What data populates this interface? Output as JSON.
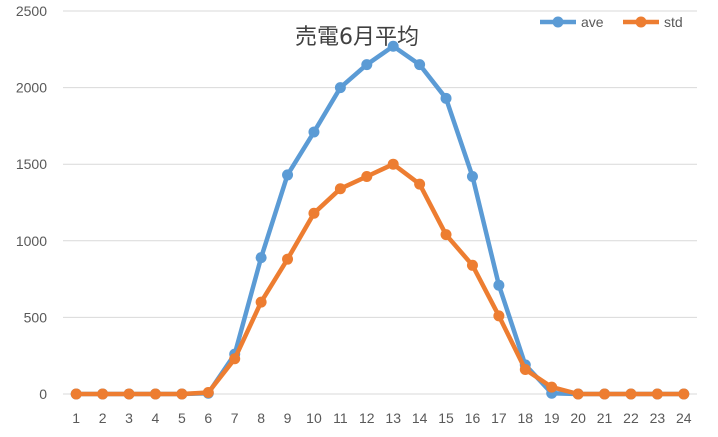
{
  "chart_data": {
    "type": "line",
    "title": "売電6月平均",
    "xlabel": "",
    "ylabel": "",
    "categories": [
      "1",
      "2",
      "3",
      "4",
      "5",
      "6",
      "7",
      "8",
      "9",
      "10",
      "11",
      "12",
      "13",
      "14",
      "15",
      "16",
      "17",
      "18",
      "19",
      "20",
      "21",
      "22",
      "23",
      "24"
    ],
    "ylim": [
      0,
      2500
    ],
    "yticks": [
      0,
      500,
      1000,
      1500,
      2000,
      2500
    ],
    "grid": true,
    "legend_position": "top-right",
    "series": [
      {
        "name": "ave",
        "color": "#5b9bd5",
        "values": [
          0,
          0,
          0,
          0,
          0,
          5,
          260,
          890,
          1430,
          1710,
          2000,
          2150,
          2270,
          2150,
          1930,
          1420,
          710,
          190,
          5,
          0,
          0,
          0,
          0,
          0
        ]
      },
      {
        "name": "std",
        "color": "#ed7d31",
        "values": [
          0,
          0,
          0,
          0,
          0,
          10,
          230,
          600,
          880,
          1180,
          1340,
          1420,
          1500,
          1370,
          1040,
          840,
          510,
          160,
          45,
          0,
          0,
          0,
          0,
          0
        ]
      }
    ]
  }
}
